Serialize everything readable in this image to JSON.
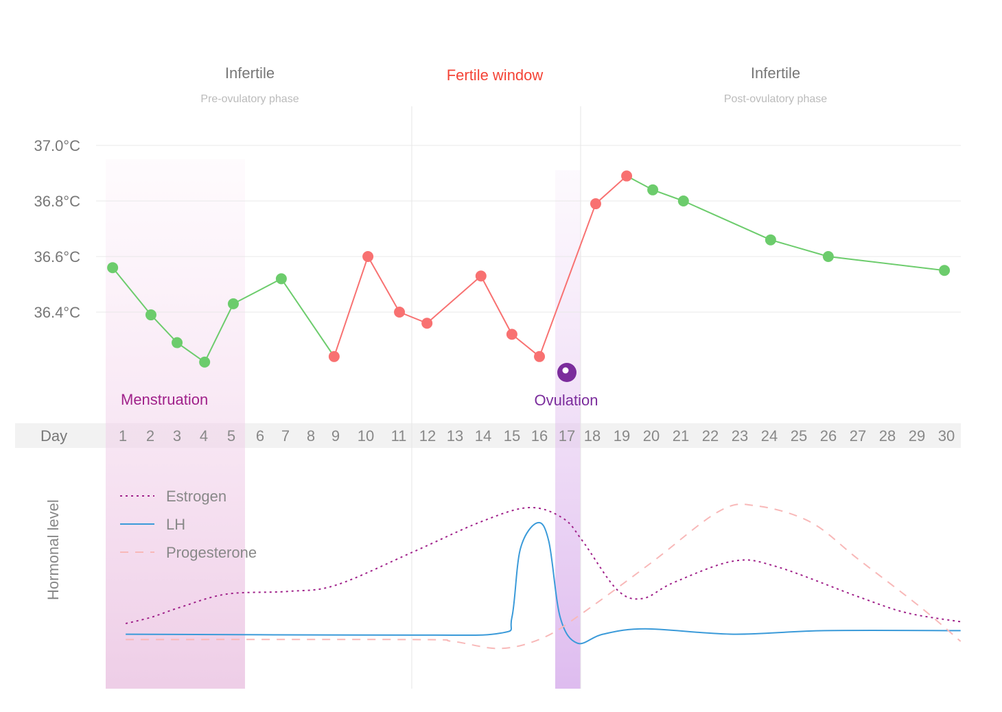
{
  "chart_data": {
    "type": "line",
    "phases": [
      {
        "title": "Infertile",
        "subtitle": "Pre-ovulatory phase"
      },
      {
        "title": "Fertile window",
        "subtitle": ""
      },
      {
        "title": "Infertile",
        "subtitle": "Post-ovulatory phase"
      }
    ],
    "colors": {
      "fertile": "#f44336",
      "green": "#6ccc6c",
      "red": "#f87171",
      "menstruation": "#a0218a",
      "ovulation": "#7b2c9c",
      "estrogen": "#a0218a",
      "lh": "#3a9ad9",
      "progesterone": "#f8b8b8"
    },
    "y_ticks": [
      "37.0°C",
      "36.8°C",
      "36.6°C",
      "36.4°C"
    ],
    "y_tick_values": [
      37.0,
      36.8,
      36.6,
      36.4
    ],
    "ylim": [
      36.1,
      37.05
    ],
    "xlabel": "Day",
    "days": [
      "1",
      "2",
      "3",
      "4",
      "5",
      "6",
      "7",
      "8",
      "9",
      "10",
      "11",
      "12",
      "13",
      "14",
      "15",
      "16",
      "17",
      "18",
      "19",
      "20",
      "21",
      "22",
      "23",
      "24",
      "25",
      "26",
      "27",
      "28",
      "29",
      "30"
    ],
    "temperature": [
      {
        "day": 0.64,
        "t": 36.56,
        "c": "green"
      },
      {
        "day": 1.99,
        "t": 36.39,
        "c": "green"
      },
      {
        "day": 2.91,
        "t": 36.29,
        "c": "green"
      },
      {
        "day": 3.88,
        "t": 36.22,
        "c": "green"
      },
      {
        "day": 4.89,
        "t": 36.43,
        "c": "green"
      },
      {
        "day": 6.58,
        "t": 36.52,
        "c": "green"
      },
      {
        "day": 8.44,
        "t": 36.24,
        "c": "red"
      },
      {
        "day": 9.63,
        "t": 36.6,
        "c": "red"
      },
      {
        "day": 10.74,
        "t": 36.4,
        "c": "red"
      },
      {
        "day": 11.71,
        "t": 36.36,
        "c": "red"
      },
      {
        "day": 13.61,
        "t": 36.53,
        "c": "red"
      },
      {
        "day": 14.7,
        "t": 36.32,
        "c": "red"
      },
      {
        "day": 15.67,
        "t": 36.24,
        "c": "red"
      },
      {
        "day": 17.65,
        "t": 36.79,
        "c": "red"
      },
      {
        "day": 18.74,
        "t": 36.89,
        "c": "red"
      },
      {
        "day": 19.66,
        "t": 36.84,
        "c": "green"
      },
      {
        "day": 20.74,
        "t": 36.8,
        "c": "green"
      },
      {
        "day": 23.81,
        "t": 36.66,
        "c": "green"
      },
      {
        "day": 25.84,
        "t": 36.6,
        "c": "green"
      },
      {
        "day": 29.93,
        "t": 36.55,
        "c": "green"
      }
    ],
    "segment_colors": [
      "green",
      "green",
      "green",
      "green",
      "green",
      "green",
      "red",
      "red",
      "red",
      "red",
      "red",
      "red",
      "red",
      "red",
      "green",
      "green",
      "green",
      "green",
      "green"
    ],
    "annotations": {
      "menstruation": "Menstruation",
      "menstruation_days": [
        1,
        5
      ],
      "ovulation": "Ovulation",
      "ovulation_day": 17
    },
    "hormone_ylabel": "Hormonal level",
    "hormones": [
      {
        "name": "Estrogen",
        "key": "estrogen",
        "dash": "dot",
        "points": [
          [
            1.1,
            35
          ],
          [
            2.0,
            38.5
          ],
          [
            3.0,
            44
          ],
          [
            4.65,
            51.5
          ],
          [
            6.8,
            53
          ],
          [
            8.5,
            56.5
          ],
          [
            11.2,
            75
          ],
          [
            13.6,
            92
          ],
          [
            15.3,
            100
          ],
          [
            16.5,
            94
          ],
          [
            17.2,
            81
          ],
          [
            18.4,
            54
          ],
          [
            19.3,
            49
          ],
          [
            20.4,
            58
          ],
          [
            22.5,
            70
          ],
          [
            24.0,
            67
          ],
          [
            26.9,
            50
          ],
          [
            28.6,
            41
          ],
          [
            30.5,
            36
          ]
        ]
      },
      {
        "name": "LH",
        "key": "lh",
        "dash": "solid",
        "points": [
          [
            1.1,
            29
          ],
          [
            11.2,
            28.5
          ],
          [
            14.3,
            29.6
          ],
          [
            14.7,
            38.5
          ],
          [
            15.0,
            77
          ],
          [
            15.6,
            91.5
          ],
          [
            16.0,
            81
          ],
          [
            16.4,
            38.5
          ],
          [
            17.0,
            24
          ],
          [
            17.9,
            29
          ],
          [
            19.4,
            32
          ],
          [
            22.5,
            29
          ],
          [
            25.7,
            31
          ],
          [
            30.5,
            31
          ]
        ]
      },
      {
        "name": "Progesterone",
        "key": "progesterone",
        "dash": "dash",
        "points": [
          [
            1.1,
            26
          ],
          [
            11.2,
            26
          ],
          [
            12.6,
            25
          ],
          [
            14.3,
            21
          ],
          [
            15.8,
            27
          ],
          [
            17.2,
            41
          ],
          [
            19.6,
            69
          ],
          [
            22.0,
            98
          ],
          [
            23.3,
            101
          ],
          [
            25.2,
            92
          ],
          [
            26.9,
            71
          ],
          [
            29.1,
            44
          ],
          [
            30.5,
            25
          ]
        ]
      }
    ]
  }
}
